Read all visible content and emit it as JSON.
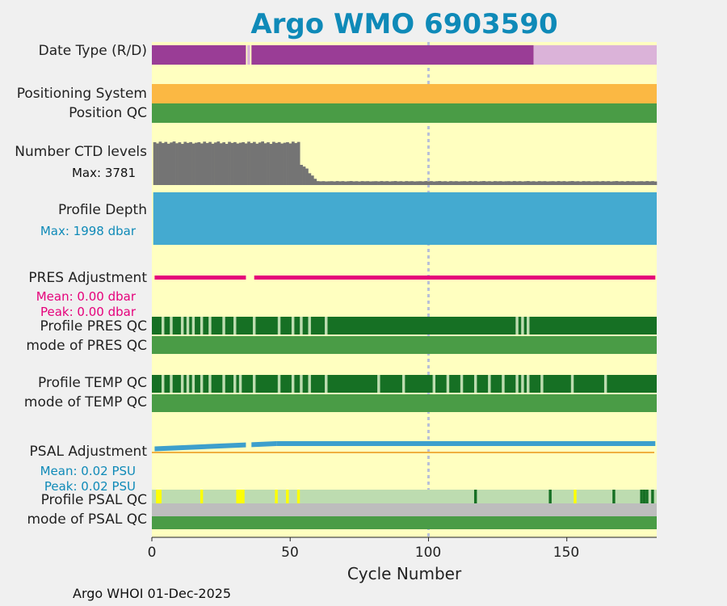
{
  "title": "Argo WMO 6903590",
  "footer": "Argo WHOI 01-Dec-2025",
  "colors": {
    "panel": "#ffffc0",
    "date_real": "#9a3d96",
    "date_delayed": "#dbb3d9",
    "positioning": "#fbb843",
    "qc_good": "#4a9c46",
    "qc_dark": "#167024",
    "qc_light": "#bddcb0",
    "ctd": "#747474",
    "depth": "#44aad0",
    "pres_adj": "#e5007a",
    "psal_adj": "#3d9fcc",
    "psal_line": "#f0b040",
    "psal_flag": "#ffff00",
    "gray": "#bdbdbd",
    "title": "#0f8ab8",
    "cycle_marker": "#b8c0d8"
  },
  "labels": {
    "date_type": "Date Type (R/D)",
    "positioning_system": "Positioning System",
    "position_qc": "Position QC",
    "ctd_levels": "Number CTD levels",
    "ctd_max": "Max: 3781",
    "profile_depth": "Profile Depth",
    "depth_max": "Max: 1998 dbar",
    "pres_adjustment": "PRES Adjustment",
    "pres_mean": "Mean: 0.00 dbar",
    "pres_peak": "Peak: 0.00 dbar",
    "profile_pres_qc": "Profile PRES QC",
    "mode_pres_qc": "mode of PRES QC",
    "profile_temp_qc": "Profile TEMP QC",
    "mode_temp_qc": "mode of TEMP QC",
    "psal_adjustment": "PSAL Adjustment",
    "psal_mean": "Mean: 0.02 PSU",
    "psal_peak": "Peak: 0.02 PSU",
    "profile_psal_qc": "Profile PSAL QC",
    "mode_psal_qc": "mode of PSAL QC"
  },
  "chart_data": {
    "type": "timeline",
    "title": "Argo WMO 6903590",
    "xlabel": "Cycle Number",
    "xlim": [
      0,
      182.5
    ],
    "x_ticks": [
      0,
      50,
      100,
      150
    ],
    "highlight_cycle": 100,
    "date_type": {
      "realtime_cycles": [
        [
          0,
          34
        ],
        [
          36,
          138
        ]
      ],
      "delayed_cycles": [
        [
          138,
          182.5
        ]
      ],
      "missing_cycles": [
        35
      ]
    },
    "ctd_levels": {
      "max": 3781,
      "segments": [
        {
          "from": 1,
          "to": 54,
          "value": 3600
        },
        {
          "from": 54,
          "to": 60,
          "value": 1800
        },
        {
          "from": 60,
          "to": 182,
          "value": 320
        }
      ]
    },
    "profile_depth": {
      "max_dbar": 1998,
      "from": 1,
      "to": 182
    },
    "pres_adjustment": {
      "mean": 0.0,
      "peak": 0.0,
      "missing_cycles": [
        34,
        35,
        36
      ]
    },
    "psal_adjustment": {
      "mean": 0.02,
      "peak": 0.02,
      "start": 0.008,
      "end": 0.02,
      "missing_cycles": [
        34,
        35
      ]
    },
    "profile_pres_qc": {
      "light_cycles": [
        4,
        7,
        11,
        13,
        15,
        18,
        21,
        26,
        30,
        37,
        46,
        51,
        54,
        57,
        63,
        132,
        134,
        136
      ]
    },
    "profile_temp_qc": {
      "light_cycles": [
        4,
        7,
        11,
        13,
        15,
        18,
        21,
        26,
        30,
        32,
        37,
        46,
        51,
        54,
        57,
        63,
        82,
        91,
        102,
        107,
        112,
        117,
        122,
        127,
        132,
        134,
        136,
        141,
        152,
        164
      ]
    },
    "profile_psal_qc": {
      "yellow_cycles": [
        2,
        3,
        18,
        31,
        32,
        33,
        45,
        49,
        53
      ],
      "dark_cycles": [
        117,
        144,
        167,
        177,
        178,
        179,
        181
      ],
      "highlight_cycles": [
        153
      ]
    }
  }
}
